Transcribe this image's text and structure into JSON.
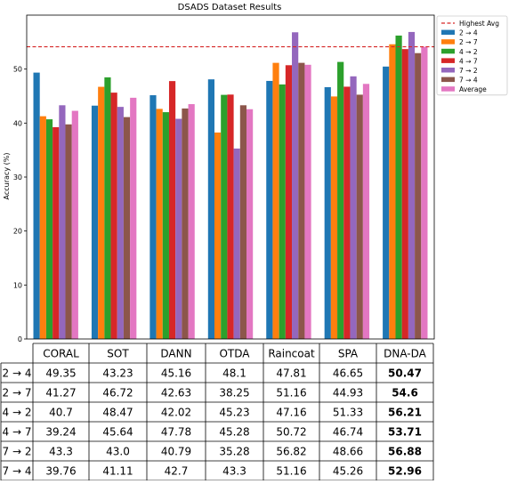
{
  "chart_data": {
    "type": "bar",
    "title": "DSADS Dataset Results",
    "ylabel": "Accuracy (%)",
    "xlabel": "",
    "ylim": [
      0,
      60
    ],
    "yticks": [
      0,
      10,
      20,
      30,
      40,
      50
    ],
    "grid": false,
    "legend_position": "outside-right",
    "categories": [
      "CORAL",
      "SOT",
      "DANN",
      "OTDA",
      "Raincoat",
      "SPA",
      "DNA-DA"
    ],
    "series": [
      {
        "name": "2 → 4",
        "color": "#1f77b4",
        "values": [
          49.35,
          43.23,
          45.16,
          48.1,
          47.81,
          46.65,
          50.47
        ]
      },
      {
        "name": "2 → 7",
        "color": "#ff7f0e",
        "values": [
          41.27,
          46.72,
          42.63,
          38.25,
          51.16,
          44.93,
          54.6
        ]
      },
      {
        "name": "4 → 2",
        "color": "#2ca02c",
        "values": [
          40.7,
          48.47,
          42.02,
          45.23,
          47.16,
          51.33,
          56.21
        ]
      },
      {
        "name": "4 → 7",
        "color": "#d62728",
        "values": [
          39.24,
          45.64,
          47.78,
          45.28,
          50.72,
          46.74,
          53.71
        ]
      },
      {
        "name": "7 → 2",
        "color": "#9467bd",
        "values": [
          43.3,
          43.0,
          40.79,
          35.28,
          56.82,
          48.66,
          56.88
        ]
      },
      {
        "name": "7 → 4",
        "color": "#8c564b",
        "values": [
          39.76,
          41.11,
          42.7,
          43.3,
          51.16,
          45.26,
          52.96
        ]
      },
      {
        "name": "Average",
        "color": "#e377c2",
        "values": [
          42.27,
          44.69,
          43.51,
          42.57,
          50.8,
          47.26,
          54.14
        ]
      }
    ],
    "reference_line": {
      "name": "Highest Avg",
      "value": 54.14,
      "color": "#d62728",
      "style": "dashed"
    },
    "table": {
      "columns": [
        "CORAL",
        "SOT",
        "DANN",
        "OTDA",
        "Raincoat",
        "SPA",
        "DNA-DA"
      ],
      "rows": [
        {
          "label": "2 → 4",
          "cells": [
            "49.35",
            "43.23",
            "45.16",
            "48.1",
            "47.81",
            "46.65",
            "50.47"
          ]
        },
        {
          "label": "2 → 7",
          "cells": [
            "41.27",
            "46.72",
            "42.63",
            "38.25",
            "51.16",
            "44.93",
            "54.6"
          ]
        },
        {
          "label": "4 → 2",
          "cells": [
            "40.7",
            "48.47",
            "42.02",
            "45.23",
            "47.16",
            "51.33",
            "56.21"
          ]
        },
        {
          "label": "4 → 7",
          "cells": [
            "39.24",
            "45.64",
            "47.78",
            "45.28",
            "50.72",
            "46.74",
            "53.71"
          ]
        },
        {
          "label": "7 → 2",
          "cells": [
            "43.3",
            "43.0",
            "40.79",
            "35.28",
            "56.82",
            "48.66",
            "56.88"
          ]
        },
        {
          "label": "7 → 4",
          "cells": [
            "39.76",
            "41.11",
            "42.7",
            "43.3",
            "51.16",
            "45.26",
            "52.96"
          ]
        }
      ],
      "bold_column": 6
    }
  }
}
